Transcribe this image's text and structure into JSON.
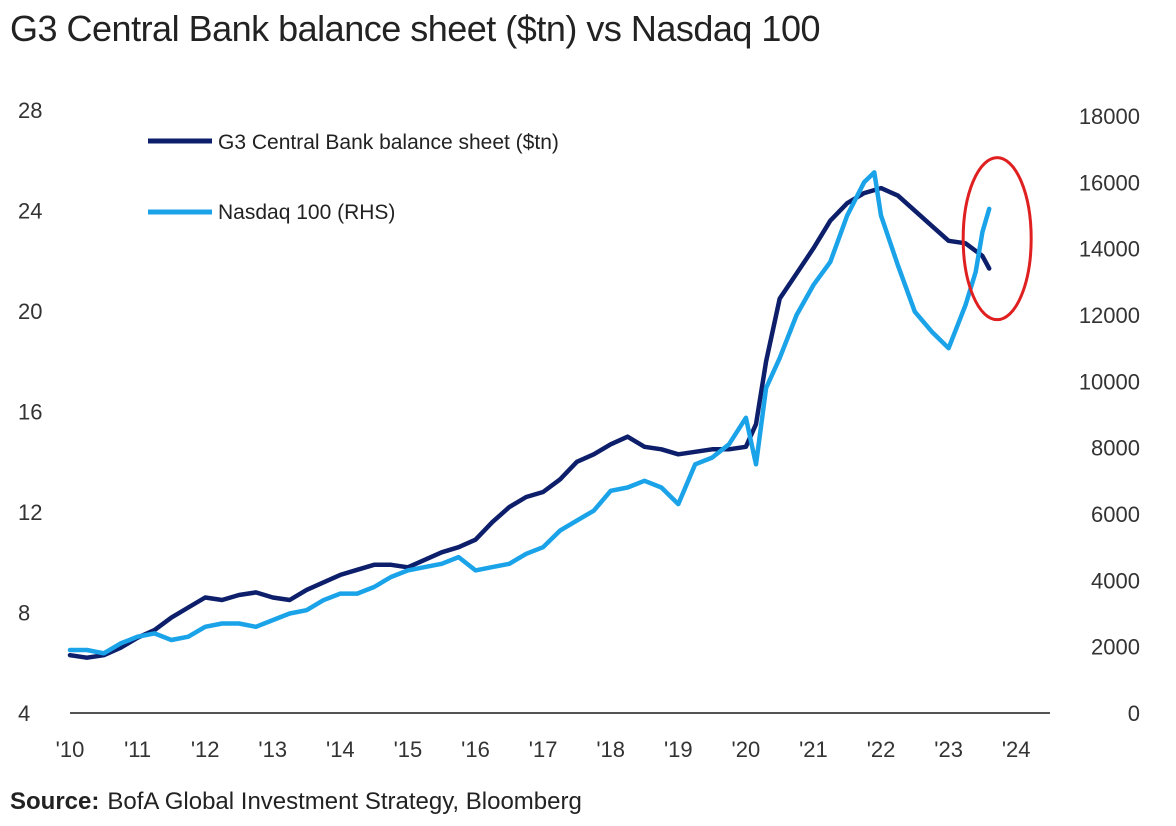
{
  "header": {
    "title": "G3 Central Bank balance sheet ($tn) vs Nasdaq 100"
  },
  "footer": {
    "source_label": "Source:",
    "source_text": "BofA Global Investment Strategy, Bloomberg"
  },
  "chart_data": {
    "type": "line",
    "title": "G3 Central Bank balance sheet ($tn) vs Nasdaq 100",
    "xlabel": "",
    "ylabel": "",
    "xlim": [
      2010,
      2024.5
    ],
    "ylim_left": [
      4,
      30
    ],
    "ylim_right": [
      0,
      18000
    ],
    "x_tick_labels": [
      "'10",
      "'11",
      "'12",
      "'13",
      "'14",
      "'15",
      "'16",
      "'17",
      "'18",
      "'19",
      "'20",
      "'21",
      "'22",
      "'23",
      "'24"
    ],
    "x_ticks": [
      2010,
      2011,
      2012,
      2013,
      2014,
      2015,
      2016,
      2017,
      2018,
      2019,
      2020,
      2021,
      2022,
      2023,
      2024
    ],
    "left_ticks": [
      4,
      8,
      12,
      16,
      20,
      24,
      28
    ],
    "right_ticks": [
      0,
      2000,
      4000,
      6000,
      8000,
      10000,
      12000,
      14000,
      16000,
      18000
    ],
    "legend_position": "top-left",
    "grid": false,
    "colors": {
      "balance_sheet": "#0d1f6b",
      "nasdaq": "#1aa3e8",
      "annotation": "#e02020"
    },
    "annotation": {
      "type": "ellipse",
      "center_x": 2023.6,
      "center_y_right": 14000,
      "note": "red circle highlighting divergence"
    },
    "series": [
      {
        "name": "G3 Central Bank balance sheet ($tn)",
        "axis": "left",
        "color": "#0d1f6b",
        "x": [
          2010.0,
          2010.25,
          2010.5,
          2010.75,
          2011.0,
          2011.25,
          2011.5,
          2011.75,
          2012.0,
          2012.25,
          2012.5,
          2012.75,
          2013.0,
          2013.25,
          2013.5,
          2013.75,
          2014.0,
          2014.25,
          2014.5,
          2014.75,
          2015.0,
          2015.25,
          2015.5,
          2015.75,
          2016.0,
          2016.25,
          2016.5,
          2016.75,
          2017.0,
          2017.25,
          2017.5,
          2017.75,
          2018.0,
          2018.25,
          2018.5,
          2018.75,
          2019.0,
          2019.25,
          2019.5,
          2019.75,
          2020.0,
          2020.15,
          2020.3,
          2020.5,
          2020.75,
          2021.0,
          2021.25,
          2021.5,
          2021.75,
          2022.0,
          2022.25,
          2022.5,
          2022.75,
          2023.0,
          2023.25,
          2023.5,
          2023.6
        ],
        "values": [
          6.3,
          6.2,
          6.3,
          6.6,
          7.0,
          7.3,
          7.8,
          8.2,
          8.6,
          8.5,
          8.7,
          8.8,
          8.6,
          8.5,
          8.9,
          9.2,
          9.5,
          9.7,
          9.9,
          9.9,
          9.8,
          10.1,
          10.4,
          10.6,
          10.9,
          11.6,
          12.2,
          12.6,
          12.8,
          13.3,
          14.0,
          14.3,
          14.7,
          15.0,
          14.6,
          14.5,
          14.3,
          14.4,
          14.5,
          14.5,
          14.6,
          15.5,
          18.0,
          20.5,
          21.5,
          22.5,
          23.6,
          24.3,
          24.7,
          24.9,
          24.6,
          24.0,
          23.4,
          22.8,
          22.7,
          22.2,
          21.7
        ]
      },
      {
        "name": "Nasdaq 100 (RHS)",
        "axis": "right",
        "color": "#1aa3e8",
        "x": [
          2010.0,
          2010.25,
          2010.5,
          2010.75,
          2011.0,
          2011.25,
          2011.5,
          2011.75,
          2012.0,
          2012.25,
          2012.5,
          2012.75,
          2013.0,
          2013.25,
          2013.5,
          2013.75,
          2014.0,
          2014.25,
          2014.5,
          2014.75,
          2015.0,
          2015.25,
          2015.5,
          2015.75,
          2016.0,
          2016.25,
          2016.5,
          2016.75,
          2017.0,
          2017.25,
          2017.5,
          2017.75,
          2018.0,
          2018.25,
          2018.5,
          2018.75,
          2019.0,
          2019.25,
          2019.5,
          2019.75,
          2020.0,
          2020.15,
          2020.3,
          2020.5,
          2020.75,
          2021.0,
          2021.25,
          2021.5,
          2021.75,
          2021.9,
          2022.0,
          2022.25,
          2022.5,
          2022.75,
          2023.0,
          2023.25,
          2023.4,
          2023.5,
          2023.6
        ],
        "values": [
          1900,
          1900,
          1800,
          2100,
          2300,
          2400,
          2200,
          2300,
          2600,
          2700,
          2700,
          2600,
          2800,
          3000,
          3100,
          3400,
          3600,
          3600,
          3800,
          4100,
          4300,
          4400,
          4500,
          4700,
          4300,
          4400,
          4500,
          4800,
          5000,
          5500,
          5800,
          6100,
          6700,
          6800,
          7000,
          6800,
          6300,
          7500,
          7700,
          8100,
          8900,
          7500,
          9800,
          10700,
          12000,
          12900,
          13600,
          15000,
          16000,
          16300,
          15000,
          13500,
          12100,
          11500,
          11000,
          12300,
          13300,
          14500,
          15200
        ]
      }
    ]
  }
}
